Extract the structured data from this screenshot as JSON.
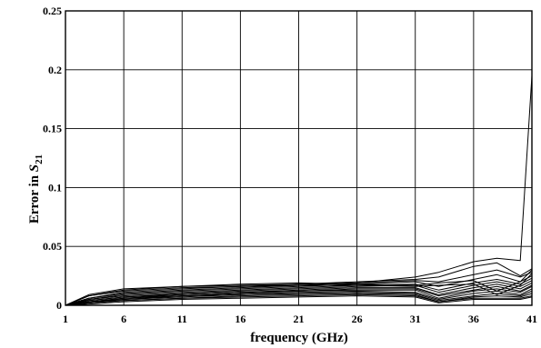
{
  "chart_data": {
    "type": "line",
    "xlabel": "frequency (GHz)",
    "ylabel_prefix": "Error in ",
    "ylabel_symbol": "S",
    "ylabel_subscript": "21",
    "x_ticks": [
      1,
      6,
      11,
      16,
      21,
      26,
      31,
      36,
      41
    ],
    "y_ticks": [
      0,
      0.05,
      0.1,
      0.15,
      0.2,
      0.25
    ],
    "y_tick_labels": [
      "0",
      "0.05",
      "0.1",
      "0.15",
      "0.2",
      "0.25"
    ],
    "xlim": [
      1,
      41
    ],
    "ylim": [
      0,
      0.25
    ],
    "grid": true,
    "x": [
      1,
      3,
      6,
      11,
      16,
      21,
      26,
      31,
      33,
      36,
      38,
      40,
      41
    ],
    "series": [
      {
        "values": [
          0,
          0.009,
          0.014,
          0.016,
          0.017,
          0.018,
          0.019,
          0.024,
          0.028,
          0.037,
          0.04,
          0.038,
          0.195
        ]
      },
      {
        "values": [
          0,
          0.008,
          0.012,
          0.015,
          0.016,
          0.018,
          0.02,
          0.022,
          0.024,
          0.033,
          0.036,
          0.025,
          0.031
        ]
      },
      {
        "values": [
          0,
          0.006,
          0.01,
          0.013,
          0.015,
          0.017,
          0.019,
          0.021,
          0.02,
          0.026,
          0.03,
          0.024,
          0.028
        ]
      },
      {
        "values": [
          0,
          0.005,
          0.009,
          0.012,
          0.014,
          0.016,
          0.018,
          0.02,
          0.016,
          0.022,
          0.026,
          0.02,
          0.025
        ]
      },
      {
        "values": [
          0,
          0.005,
          0.008,
          0.011,
          0.013,
          0.015,
          0.017,
          0.018,
          0.013,
          0.019,
          0.022,
          0.018,
          0.023
        ]
      },
      {
        "values": [
          0,
          0.004,
          0.007,
          0.01,
          0.012,
          0.014,
          0.016,
          0.017,
          0.011,
          0.017,
          0.02,
          0.016,
          0.021
        ]
      },
      {
        "values": [
          0,
          0.004,
          0.007,
          0.009,
          0.011,
          0.013,
          0.015,
          0.015,
          0.009,
          0.015,
          0.018,
          0.014,
          0.019
        ]
      },
      {
        "values": [
          0,
          0.003,
          0.006,
          0.009,
          0.011,
          0.012,
          0.014,
          0.014,
          0.008,
          0.013,
          0.016,
          0.012,
          0.017
        ]
      },
      {
        "values": [
          0,
          0.003,
          0.006,
          0.008,
          0.01,
          0.012,
          0.013,
          0.013,
          0.006,
          0.012,
          0.014,
          0.011,
          0.016
        ]
      },
      {
        "values": [
          0,
          0.003,
          0.005,
          0.008,
          0.009,
          0.011,
          0.012,
          0.011,
          0.005,
          0.01,
          0.012,
          0.009,
          0.014
        ]
      },
      {
        "values": [
          0,
          0.002,
          0.005,
          0.007,
          0.009,
          0.01,
          0.011,
          0.01,
          0.004,
          0.008,
          0.01,
          0.008,
          0.012
        ]
      },
      {
        "values": [
          0,
          0.002,
          0.004,
          0.006,
          0.008,
          0.009,
          0.01,
          0.009,
          0.003,
          0.007,
          0.008,
          0.007,
          0.01
        ]
      },
      {
        "values": [
          0,
          0.002,
          0.004,
          0.006,
          0.007,
          0.008,
          0.009,
          0.008,
          0.003,
          0.006,
          0.006,
          0.006,
          0.008
        ]
      },
      {
        "values": [
          0,
          0.001,
          0.003,
          0.005,
          0.006,
          0.007,
          0.008,
          0.007,
          0.002,
          0.005,
          0.005,
          0.005,
          0.007
        ]
      },
      {
        "values": [
          0,
          0.008,
          0.013,
          0.016,
          0.018,
          0.019,
          0.018,
          0.017,
          0.019,
          0.021,
          0.012,
          0.02,
          0.03
        ]
      },
      {
        "values": [
          0,
          0.006,
          0.011,
          0.014,
          0.016,
          0.017,
          0.017,
          0.016,
          0.017,
          0.018,
          0.009,
          0.017,
          0.027
        ]
      }
    ]
  }
}
